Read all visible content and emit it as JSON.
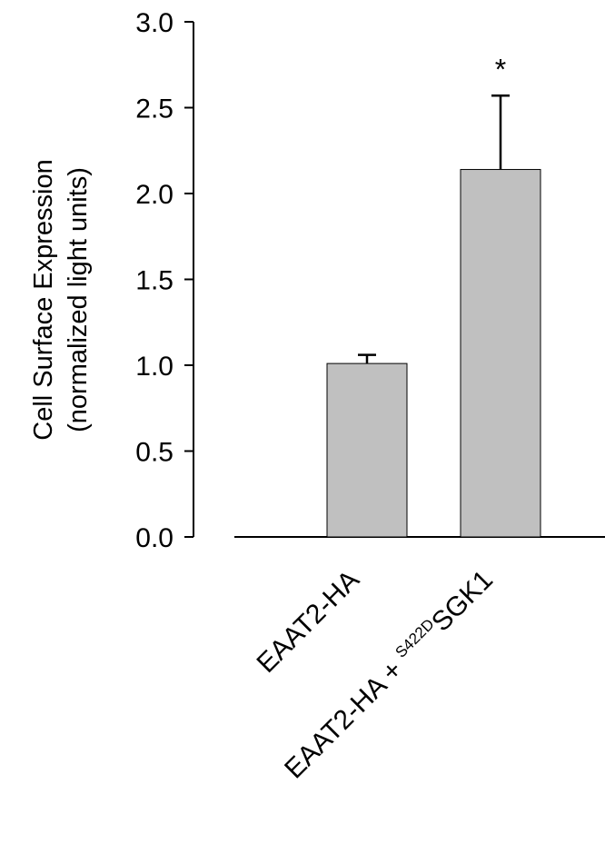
{
  "chart_data": {
    "type": "bar",
    "ylabel_line1": "Cell Surface Expression",
    "ylabel_line2": "(normalized light units)",
    "ylim": [
      0,
      3.0
    ],
    "yticks": [
      "0.0",
      "0.5",
      "1.0",
      "1.5",
      "2.0",
      "2.5",
      "3.0"
    ],
    "ytick_values": [
      0,
      0.5,
      1.0,
      1.5,
      2.0,
      2.5,
      3.0
    ],
    "categories": [
      {
        "main": "EAAT2-HA",
        "prefix": "",
        "sup": "",
        "suffix": ""
      },
      {
        "main": "",
        "prefix": "EAAT2-HA + ",
        "sup": "S422D",
        "suffix": "SGK1"
      }
    ],
    "values": [
      1.01,
      2.14
    ],
    "errors": [
      0.05,
      0.43
    ],
    "annotations": [
      "",
      "*"
    ],
    "bar_color": "#c0c0c0",
    "grid": false
  }
}
